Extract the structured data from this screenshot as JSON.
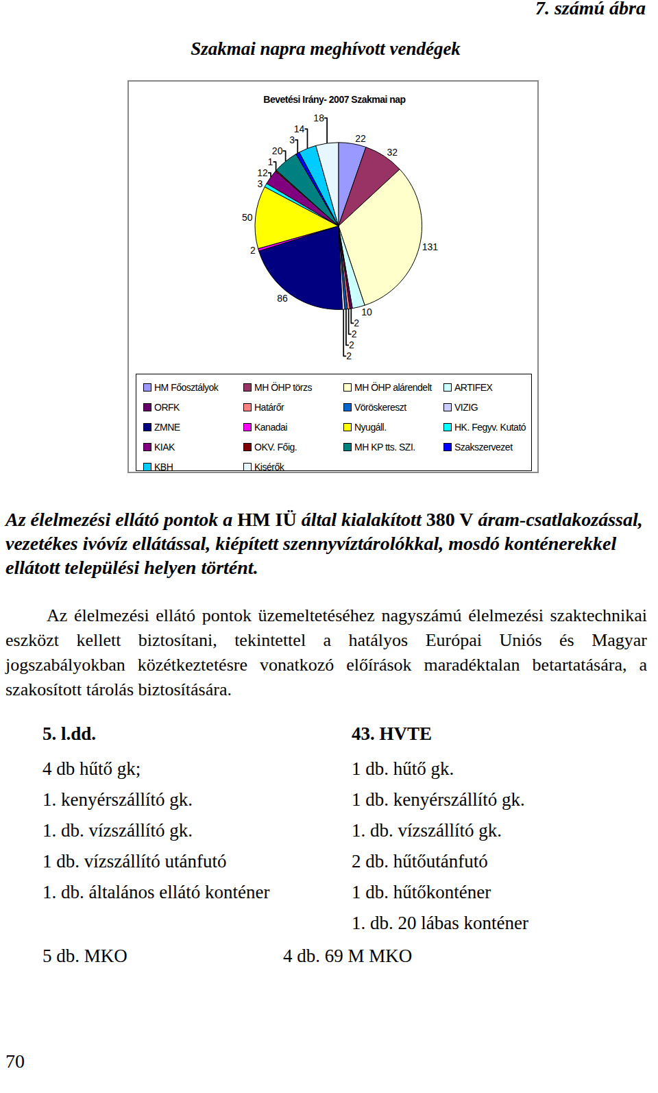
{
  "figure_label": "7. számú ábra",
  "figure_title": "Szakmai napra meghívott vendégek",
  "chart_data": {
    "type": "pie",
    "title": "Bevetési Irány- 2007 Szakmai nap",
    "data_labels": true,
    "categories": [
      "HM Főosztályok",
      "MH ÖHP törzs",
      "MH ÖHP alárendelt",
      "ARTIFEX",
      "ORFK",
      "Határőr",
      "Vöröskereszt",
      "VIZIG",
      "ZMNE",
      "Kanadai",
      "Nyugáll.",
      "HK. Fegyv. Kutató",
      "KIAK",
      "OKV. Főig.",
      "MH KP tts. SZI.",
      "Szakszervezet",
      "KBH",
      "Kisérők"
    ],
    "values": [
      22,
      32,
      131,
      10,
      2,
      2,
      2,
      2,
      86,
      2,
      50,
      3,
      12,
      1,
      20,
      3,
      14,
      18
    ],
    "colors": [
      "#9999FF",
      "#993366",
      "#FFFFCC",
      "#CCFFFF",
      "#660066",
      "#FF8080",
      "#0066CC",
      "#CCCCFF",
      "#000080",
      "#FF00FF",
      "#FFFF00",
      "#00FFFF",
      "#800080",
      "#800000",
      "#008080",
      "#0000FF",
      "#00CCFF",
      "#E6F7FF"
    ],
    "legend": "bottom"
  },
  "paragraph_1": [
    {
      "text": "Az élelmezési ellátó pontok a ",
      "italic": true
    },
    {
      "text": "HM IÜ",
      "italic": false
    },
    {
      "text": " által kialakított ",
      "italic": true
    },
    {
      "text": "380 V",
      "italic": false
    },
    {
      "text": " áram-csatlakozással, vezetékes ivóvíz ellátással, kiépített szennyvíztárolókkal, mosdó konténerekkel ellátott települési helyen történt.",
      "italic": true
    }
  ],
  "paragraph_2": "Az élelmezési ellátó pontok üzemeltetéséhez nagyszámú élelmezési szaktechnikai eszközt kellett biztosítani, tekintettel a hatályos Európai Uniós és Magyar jogszabályokban közétkeztetésre vonatkozó előírások maradéktalan betartatására, a szakosított tárolás biztosítására.",
  "lists": [
    {
      "heading": "5. l.dd.",
      "items": [
        "4 db hűtő gk;",
        "1. kenyérszállító gk.",
        "1. db. vízszállító gk.",
        "1 db. vízszállító utánfutó",
        "1. db. általános ellátó konténer"
      ],
      "total": "5 db. MKO"
    },
    {
      "heading": "43. HVTE",
      "items": [
        "1 db. hűtő gk.",
        "1 db. kenyérszállító gk.",
        "1. db. vízszállító gk.",
        "2 db. hűtőutánfutó",
        "1 db. hűtőkonténer",
        "1. db. 20 lábas konténer"
      ],
      "total": "4 db. 69 M MKO"
    }
  ],
  "page_number": "70"
}
